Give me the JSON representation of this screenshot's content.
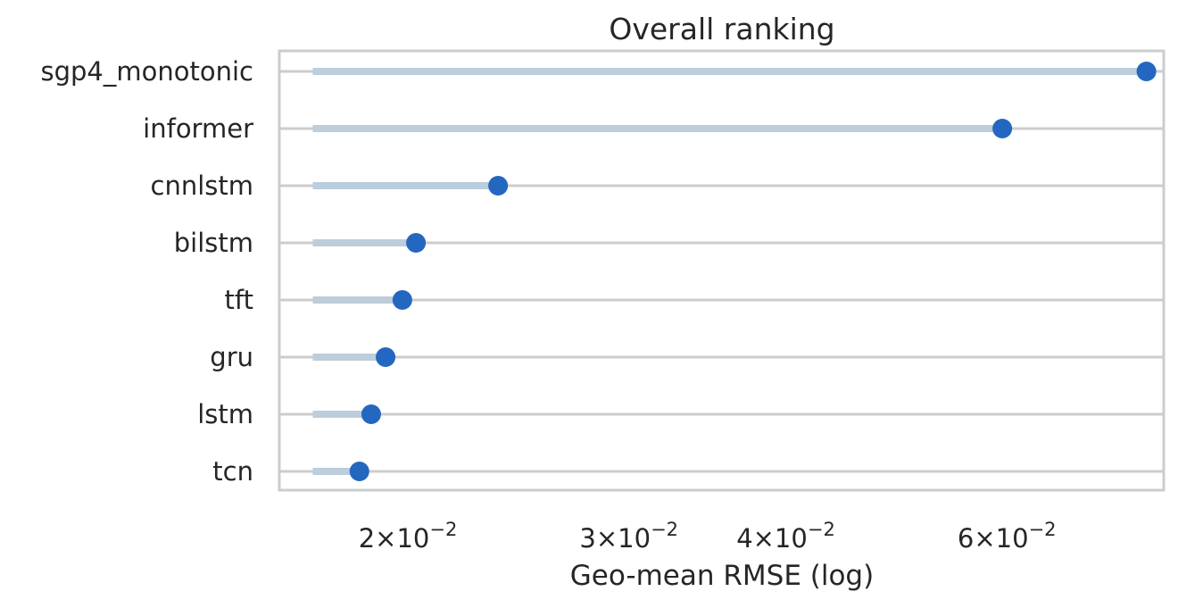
{
  "chart_data": {
    "type": "lollipop",
    "title": "Overall ranking",
    "xlabel": "Geo-mean RMSE (log)",
    "ylabel": "",
    "x_scale": "log",
    "xlim": [
      0.0158,
      0.08
    ],
    "baseline": 0.0168,
    "grid": "horizontal",
    "categories": [
      "sgp4_monotonic",
      "informer",
      "cnnlstm",
      "bilstm",
      "tft",
      "gru",
      "lstm",
      "tcn"
    ],
    "values": [
      0.0775,
      0.0595,
      0.0236,
      0.0203,
      0.0198,
      0.0192,
      0.0187,
      0.0183
    ],
    "x_ticks": [
      {
        "value": 0.02,
        "mantissa": "2",
        "base": "10",
        "exponent": "−2"
      },
      {
        "value": 0.03,
        "mantissa": "3",
        "base": "10",
        "exponent": "−2"
      },
      {
        "value": 0.04,
        "mantissa": "4",
        "base": "10",
        "exponent": "−2"
      },
      {
        "value": 0.06,
        "mantissa": "6",
        "base": "10",
        "exponent": "−2"
      }
    ],
    "colors": {
      "marker": "#2367c0",
      "stem": "#bccddb",
      "grid": "#cccccc",
      "frame": "#cccccc",
      "text": "#262626"
    }
  }
}
